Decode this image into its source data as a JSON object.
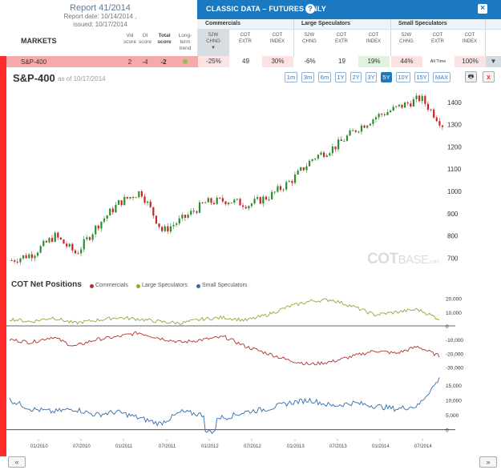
{
  "report": {
    "title": "Report 41/2014",
    "date": "Report date: 10/14/2014 ,",
    "issued": "issued: 10/17/2014"
  },
  "left_headers": {
    "markets": "MARKETS",
    "vol_score": "Vol\nscore",
    "oi_score": "OI\nscore",
    "total_score": "Total\nscore",
    "long_term_trend": "Long-\nterm\ntrend"
  },
  "classic": {
    "title": "CLASSIC DATA – FUTURES ONLY",
    "help": "?",
    "close": "×",
    "groups": [
      "Commercials",
      "Large Speculators",
      "Small Speculators"
    ],
    "subheads": [
      "52W\nCHNG",
      "COT\nEXTR",
      "COT\nINDEX",
      "52W\nCHNG",
      "COT\nEXTR",
      "COT\nINDEX",
      "52W\nCHNG",
      "COT\nEXTR",
      "COT\nINDEX"
    ]
  },
  "row": {
    "market": "S&P-400",
    "vol": "2",
    "oi": "-4",
    "total": "-2",
    "values": [
      "-25%",
      "49",
      "30%",
      "-6%",
      "19",
      "19%",
      "44%",
      "All Time",
      "100%"
    ],
    "cell_colors": [
      "#fbe3e3",
      "#ffffff",
      "#fbe3e3",
      "#ffffff",
      "#ffffff",
      "#dff3df",
      "#fbe3e3",
      "#ffffff",
      "#fbe3e3"
    ],
    "dropdown": "▼"
  },
  "chart": {
    "title": "S&P-400",
    "asof": "as of 10/17/2014",
    "ranges": [
      "1m",
      "3m",
      "6m",
      "1Y",
      "2Y",
      "3Y",
      "5Y",
      "10Y",
      "15Y",
      "MAX"
    ],
    "active_range": "5Y",
    "print_icon": "🖶",
    "close_icon": "x",
    "watermark_cot": "COT",
    "watermark_base": "BASE",
    "watermark_com": ".com"
  },
  "chart_data": [
    {
      "type": "candlestick",
      "title": "S&P-400",
      "yticks": [
        700,
        800,
        900,
        1000,
        1100,
        1200,
        1300,
        1400
      ],
      "ylim": [
        640,
        1450
      ],
      "x": [
        "2009-10",
        "2010-01",
        "2010-04",
        "2010-07",
        "2010-10",
        "2011-01",
        "2011-04",
        "2011-07",
        "2011-10",
        "2012-01",
        "2012-04",
        "2012-07",
        "2012-10",
        "2013-01",
        "2013-04",
        "2013-07",
        "2013-10",
        "2014-01",
        "2014-04",
        "2014-07",
        "2014-10"
      ],
      "close": [
        690,
        720,
        800,
        720,
        850,
        950,
        1000,
        820,
        880,
        950,
        960,
        940,
        980,
        1050,
        1150,
        1200,
        1280,
        1340,
        1380,
        1420,
        1300
      ]
    },
    {
      "type": "line",
      "title": "COT Net Positions",
      "series": [
        {
          "name": "Commercials",
          "color": "#b03030",
          "values": [
            -10000,
            -12000,
            -8000,
            -15000,
            -10000,
            -8000,
            -5000,
            -9000,
            -12000,
            -10000,
            -8000,
            -15000,
            -20000,
            -25000,
            -28000,
            -26000,
            -22000,
            -18000,
            -20000,
            -15000,
            -22000
          ]
        },
        {
          "name": "Large Speculators",
          "color": "#8aab3c",
          "values": [
            5000,
            3000,
            6000,
            2000,
            4000,
            6000,
            5000,
            3000,
            2000,
            5000,
            6000,
            4000,
            8000,
            14000,
            18000,
            19000,
            14000,
            8000,
            10000,
            12000,
            5000
          ]
        },
        {
          "name": "Small Speculators",
          "color": "#2f6db0",
          "values": [
            10000,
            7000,
            6000,
            7000,
            5000,
            6000,
            4000,
            2000,
            6000,
            5000,
            4000,
            6000,
            7000,
            9000,
            10000,
            8000,
            9000,
            8000,
            7000,
            8000,
            17000
          ]
        }
      ],
      "yticks_top": [
        "20,000",
        "10,000",
        "0",
        "-10,000",
        "-20,000",
        "-30,000"
      ],
      "yticks_bottom": [
        "15,000",
        "10,000",
        "5,000",
        "0"
      ],
      "xticks": [
        "01/2010",
        "07/2010",
        "01/2011",
        "07/2011",
        "01/2012",
        "07/2012",
        "01/2013",
        "07/2013",
        "01/2014",
        "07/2014"
      ]
    }
  ],
  "nav": {
    "prev": "«",
    "next": "»"
  }
}
